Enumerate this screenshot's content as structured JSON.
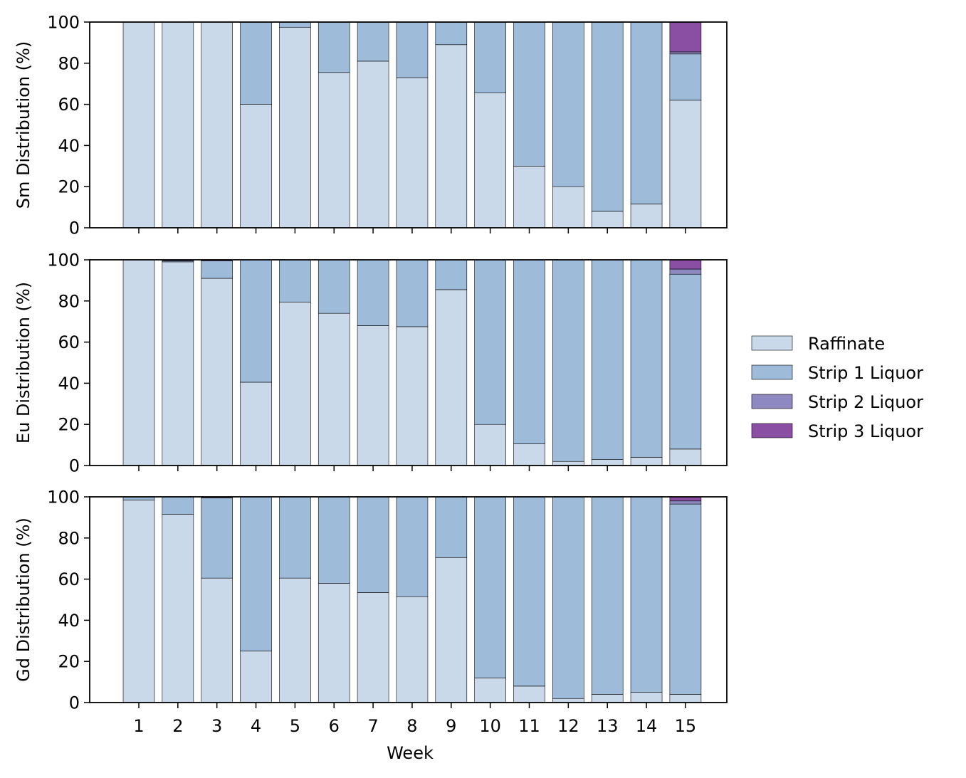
{
  "chart_data": [
    {
      "type": "bar",
      "stacked": true,
      "ylabel": "Sm Distribution (%)",
      "xlabel": "",
      "ylim": [
        0,
        100
      ],
      "yticks": [
        0,
        20,
        40,
        60,
        80,
        100
      ],
      "categories": [
        "1",
        "2",
        "3",
        "4",
        "5",
        "6",
        "7",
        "8",
        "9",
        "10",
        "11",
        "12",
        "13",
        "14",
        "15"
      ],
      "series": [
        {
          "name": "Raffinate",
          "values": [
            100,
            100,
            100,
            60,
            97.5,
            75.5,
            81,
            73,
            89,
            65.5,
            30,
            20,
            8,
            11.5,
            62
          ]
        },
        {
          "name": "Strip 1 Liquor",
          "values": [
            0,
            0,
            0,
            40,
            2.5,
            24.5,
            19,
            27,
            11,
            34.5,
            70,
            80,
            92,
            88.5,
            22.5
          ]
        },
        {
          "name": "Strip 2 Liquor",
          "values": [
            0,
            0,
            0,
            0,
            0,
            0,
            0,
            0,
            0,
            0,
            0,
            0,
            0,
            0,
            1
          ]
        },
        {
          "name": "Strip 3 Liquor",
          "values": [
            0,
            0,
            0,
            0,
            0,
            0,
            0,
            0,
            0,
            0,
            0,
            0,
            0,
            0,
            14.5
          ]
        }
      ]
    },
    {
      "type": "bar",
      "stacked": true,
      "ylabel": "Eu Distribution (%)",
      "xlabel": "",
      "ylim": [
        0,
        100
      ],
      "yticks": [
        0,
        20,
        40,
        60,
        80,
        100
      ],
      "categories": [
        "1",
        "2",
        "3",
        "4",
        "5",
        "6",
        "7",
        "8",
        "9",
        "10",
        "11",
        "12",
        "13",
        "14",
        "15"
      ],
      "series": [
        {
          "name": "Raffinate",
          "values": [
            100,
            99,
            91,
            40.5,
            79.5,
            74,
            68,
            67.5,
            85.5,
            20,
            10.5,
            2,
            3,
            4,
            8
          ]
        },
        {
          "name": "Strip 1 Liquor",
          "values": [
            0,
            0.5,
            8.5,
            59.5,
            20.5,
            26,
            32,
            32.5,
            14.5,
            80,
            89.5,
            98,
            97,
            96,
            85
          ]
        },
        {
          "name": "Strip 2 Liquor",
          "values": [
            0,
            0.5,
            0.5,
            0,
            0,
            0,
            0,
            0,
            0,
            0,
            0,
            0,
            0,
            0,
            2.5
          ]
        },
        {
          "name": "Strip 3 Liquor",
          "values": [
            0,
            0,
            0,
            0,
            0,
            0,
            0,
            0,
            0,
            0,
            0,
            0,
            0,
            0,
            4.5
          ]
        }
      ]
    },
    {
      "type": "bar",
      "stacked": true,
      "ylabel": "Gd Distribution (%)",
      "xlabel": "Week",
      "ylim": [
        0,
        100
      ],
      "yticks": [
        0,
        20,
        40,
        60,
        80,
        100
      ],
      "categories": [
        "1",
        "2",
        "3",
        "4",
        "5",
        "6",
        "7",
        "8",
        "9",
        "10",
        "11",
        "12",
        "13",
        "14",
        "15"
      ],
      "series": [
        {
          "name": "Raffinate",
          "values": [
            98.5,
            91.5,
            60.5,
            25,
            60.5,
            58,
            53.5,
            51.5,
            70.5,
            12,
            8,
            2,
            4,
            5,
            4
          ]
        },
        {
          "name": "Strip 1 Liquor",
          "values": [
            1.5,
            8.5,
            39,
            75,
            39.5,
            42,
            46.5,
            48.5,
            29.5,
            88,
            92,
            98,
            96,
            95,
            92.5
          ]
        },
        {
          "name": "Strip 2 Liquor",
          "values": [
            0,
            0,
            0.5,
            0,
            0,
            0,
            0,
            0,
            0,
            0,
            0,
            0,
            0,
            0,
            1.5
          ]
        },
        {
          "name": "Strip 3 Liquor",
          "values": [
            0,
            0,
            0,
            0,
            0,
            0,
            0,
            0,
            0,
            0,
            0,
            0,
            0,
            0,
            2
          ]
        }
      ]
    }
  ],
  "legend": {
    "placement": "center-right",
    "items": [
      {
        "label": "Raffinate",
        "color": "#c9d9e9"
      },
      {
        "label": "Strip 1 Liquor",
        "color": "#9fbbda"
      },
      {
        "label": "Strip 2 Liquor",
        "color": "#8e89c0"
      },
      {
        "label": "Strip 3 Liquor",
        "color": "#8a4fa3"
      }
    ]
  }
}
